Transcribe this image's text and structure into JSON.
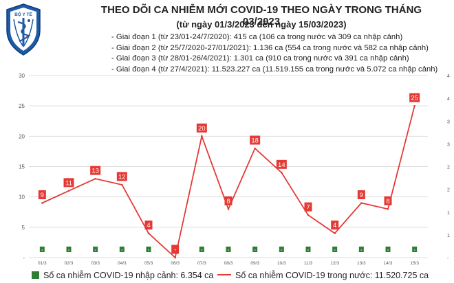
{
  "header": {
    "title": "THEO DÕI CA NHIỄM MỚI COVID-19 THEO NGÀY TRONG THÁNG 03/2023",
    "subtitle": "(từ ngày 01/3/2023 đến ngày 15/03/2023)",
    "phases": [
      "- Giai đoạn 1 (từ 23/01-24/7/2020): 415 ca (106 ca trong nước và 309 ca nhập cảnh)",
      "- Giai đoạn 2 (từ 25/7/2020-27/01/2021): 1.136 ca (554 ca trong nước và 582 ca nhập cảnh)",
      "- Giai đoạn 3 (từ 28/01-26/4/2021): 1.301 ca (910 ca trong nước và 391 ca nhập cảnh)",
      "- Giai đoạn 4 (từ 27/4/2021): 11.523.227 ca (11.519.155 ca trong nước và 5.072 ca nhập cảnh)"
    ]
  },
  "logo": {
    "text": "BỘ Y TẾ · MINISTRY OF HEALTH"
  },
  "legend": {
    "bars_label": "Số ca nhiễm COVID-19 nhập cảnh: 6.354 ca",
    "line_label": "Số ca nhiễm COVID-19 trong nước: 11.520.725 ca"
  },
  "colors": {
    "line": "#e53935",
    "bar": "#2e7d32",
    "grid": "#dddddd",
    "axis_text": "#555555"
  },
  "chart_data": {
    "type": "bar+line",
    "categories": [
      "01/3",
      "02/3",
      "03/3",
      "04/3",
      "05/3",
      "06/3",
      "07/3",
      "08/3",
      "09/3",
      "10/3",
      "11/3",
      "12/3",
      "13/3",
      "14/3",
      "15/3"
    ],
    "series": [
      {
        "axis": "left",
        "type": "line",
        "values": [
          9,
          11,
          13,
          12,
          4,
          0,
          20,
          8,
          18,
          14,
          7,
          4,
          9,
          8,
          25
        ]
      },
      {
        "axis": "right",
        "type": "bar",
        "values": [
          0,
          0,
          0,
          0,
          0,
          0,
          0,
          0,
          0,
          0,
          0,
          0,
          0,
          0,
          0
        ],
        "data_labels": [
          "-",
          "-",
          "-",
          "-",
          "-",
          "-",
          "-",
          "-",
          "-",
          "-",
          "-",
          "-",
          "-",
          "-",
          "-"
        ]
      }
    ],
    "y_left": {
      "ticks": [
        "-",
        "5",
        "10",
        "15",
        "20",
        "25",
        "30"
      ],
      "ylim": [
        0,
        30
      ]
    },
    "y_right": {
      "ticks": [
        "-",
        "1",
        "1",
        "2",
        "2",
        "3",
        "3",
        "4",
        "4"
      ],
      "ylim": [
        0,
        4
      ]
    },
    "point_labels": [
      "9",
      "11",
      "13",
      "12",
      "4",
      "-",
      "20",
      "8",
      "18",
      "14",
      "7",
      "4",
      "9",
      "8",
      "25"
    ],
    "grid": true
  }
}
